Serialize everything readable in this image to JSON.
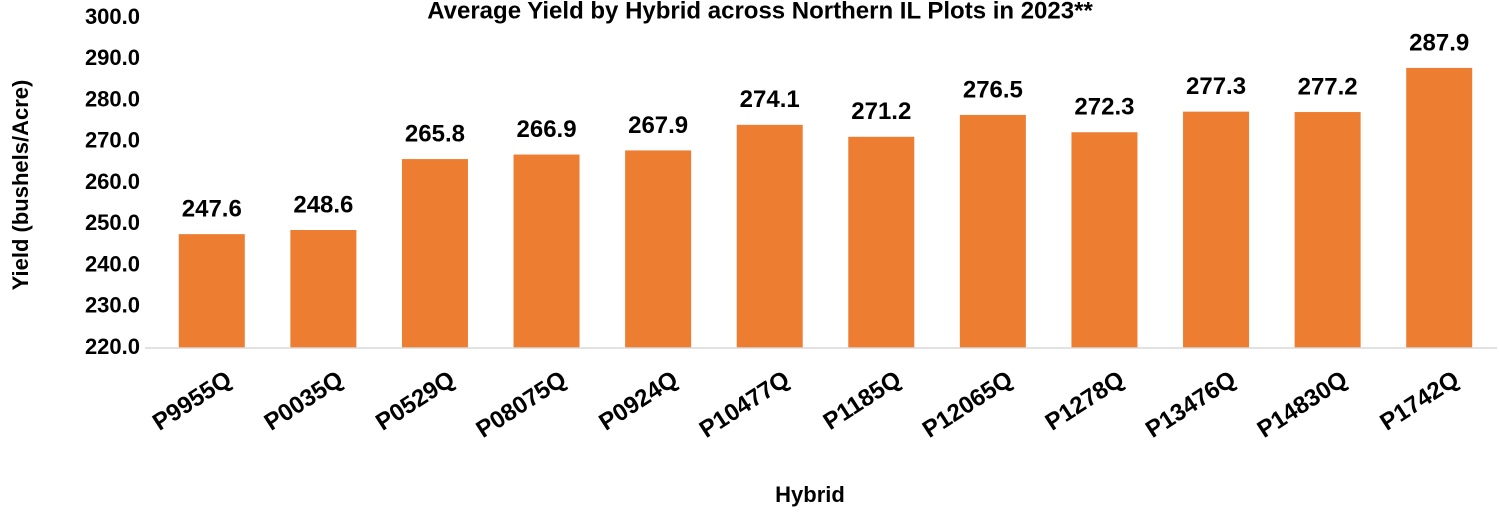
{
  "chart_data": {
    "type": "bar",
    "title": "Average Yield by Hybrid across Northern IL Plots in 2023**",
    "x_label": "Hybrid",
    "y_label": "Yield (bushels/Acre)",
    "categories": [
      "P9955Q",
      "P0035Q",
      "P0529Q",
      "P08075Q",
      "P0924Q",
      "P10477Q",
      "P1185Q",
      "P12065Q",
      "P1278Q",
      "P13476Q",
      "P14830Q",
      "P1742Q"
    ],
    "values": [
      247.6,
      248.6,
      265.8,
      266.9,
      267.9,
      274.1,
      271.2,
      276.5,
      272.3,
      277.3,
      277.2,
      287.9
    ],
    "color": "#ed7d31",
    "ylim": [
      220,
      300
    ],
    "yticks": [
      {
        "value": 220,
        "label": "220.0"
      },
      {
        "value": 230,
        "label": "230.0"
      },
      {
        "value": 240,
        "label": "240.0"
      },
      {
        "value": 250,
        "label": "250.0"
      },
      {
        "value": 260,
        "label": "260.0"
      },
      {
        "value": 270,
        "label": "270.0"
      },
      {
        "value": 280,
        "label": "280.0"
      },
      {
        "value": 290,
        "label": "290.0"
      },
      {
        "value": 300,
        "label": "300.0"
      }
    ],
    "grid": false
  }
}
